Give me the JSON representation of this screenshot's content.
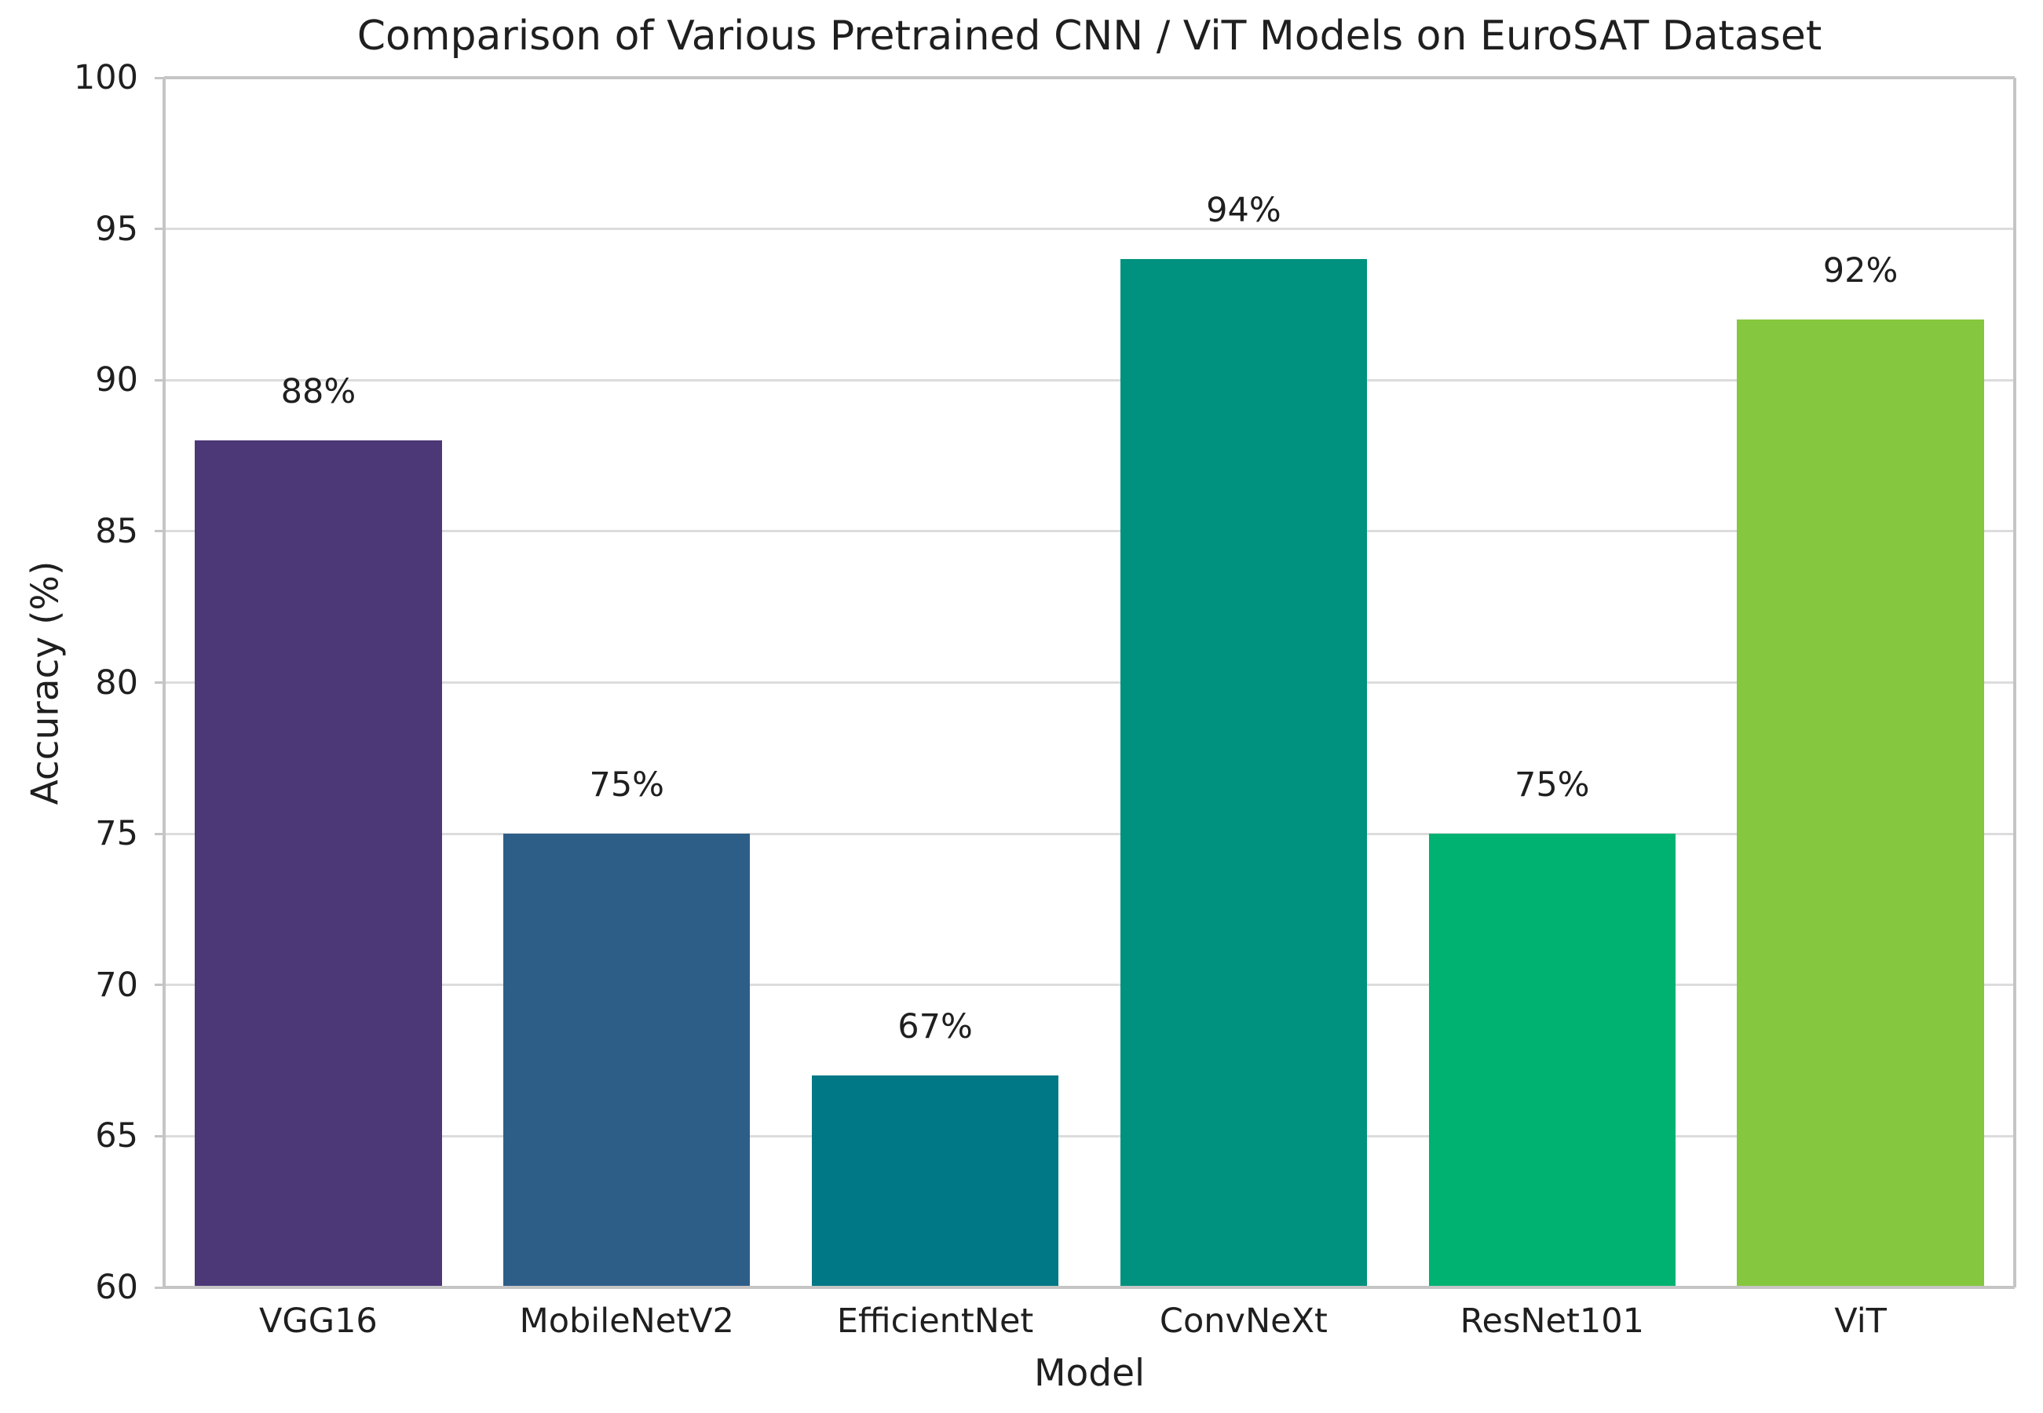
{
  "chart_data": {
    "type": "bar",
    "title": "Comparison of Various Pretrained CNN / ViT Models on EuroSAT Dataset",
    "xlabel": "Model",
    "ylabel": "Accuracy (%)",
    "categories": [
      "VGG16",
      "MobileNetV2",
      "EfficientNet",
      "ConvNeXt",
      "ResNet101",
      "ViT"
    ],
    "values": [
      88,
      75,
      67,
      94,
      75,
      92
    ],
    "bar_labels": [
      "88%",
      "75%",
      "67%",
      "94%",
      "75%",
      "92%"
    ],
    "bar_colors": [
      "#4c3877",
      "#2d5e88",
      "#007885",
      "#00927e",
      "#00b272",
      "#85c73e"
    ],
    "ylim": [
      60,
      100
    ],
    "ytick_step": 5,
    "ytick_labels": [
      "60",
      "65",
      "70",
      "75",
      "80",
      "85",
      "90",
      "95",
      "100"
    ],
    "grid": "horizontal",
    "legend": "none",
    "bar_width_fraction": 0.8,
    "colors": {
      "grid": "#dcdcdc",
      "spine": "#c5c5c5",
      "text": "#1f1f1f",
      "background": "#ffffff"
    }
  }
}
